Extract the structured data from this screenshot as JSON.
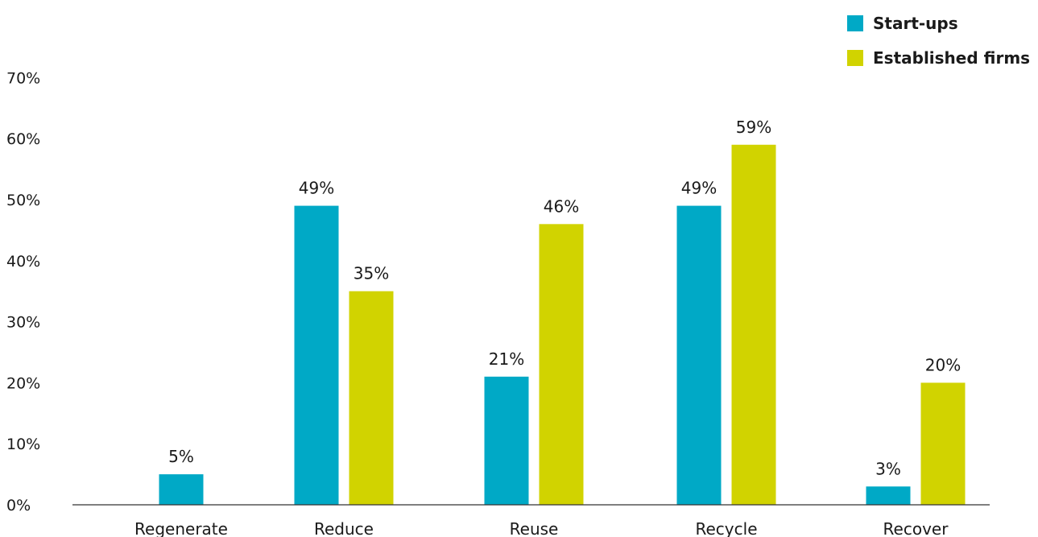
{
  "chart_data": {
    "type": "bar",
    "categories": [
      "Regenerate",
      "Reduce",
      "Reuse",
      "Recycle",
      "Recover"
    ],
    "series": [
      {
        "name": "Start-ups",
        "color": "#00a9c6",
        "values": [
          5,
          49,
          21,
          49,
          3
        ],
        "value_labels": [
          "5%",
          "49%",
          "21%",
          "49%",
          "3%"
        ]
      },
      {
        "name": "Established firms",
        "color": "#d1d300",
        "values": [
          null,
          35,
          46,
          59,
          20
        ],
        "value_labels": [
          "",
          "35%",
          "46%",
          "59%",
          "20%"
        ]
      }
    ],
    "y_ticks": [
      0,
      10,
      20,
      30,
      40,
      50,
      60,
      70
    ],
    "y_tick_labels": [
      "0%",
      "10%",
      "20%",
      "30%",
      "40%",
      "50%",
      "60%",
      "70%"
    ],
    "ylim": [
      0,
      70
    ],
    "legend_position": "top-right",
    "grid": false
  }
}
